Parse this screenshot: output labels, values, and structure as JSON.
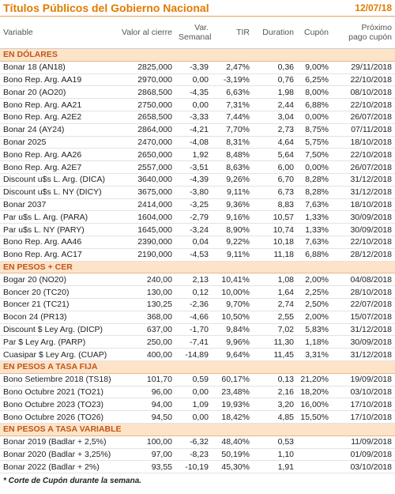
{
  "header": {
    "title": "Títulos Públicos del Gobierno Nacional",
    "date": "12/07/18"
  },
  "table": {
    "columns": [
      [
        "Variable"
      ],
      [
        "Valor al cierre"
      ],
      [
        "Var.",
        "Semanal"
      ],
      [
        "TIR"
      ],
      [
        "Duration"
      ],
      [
        "Cupón"
      ],
      [
        "Próximo",
        "pago cupón"
      ]
    ],
    "sections": [
      {
        "title": "EN DÓLARES",
        "rows": [
          [
            "Bonar 18 (AN18)",
            "2825,000",
            "-3,39",
            "2,47%",
            "0,36",
            "9,00%",
            "29/11/2018"
          ],
          [
            "Bono Rep. Arg. AA19",
            "2970,000",
            "0,00",
            "-3,19%",
            "0,76",
            "6,25%",
            "22/10/2018"
          ],
          [
            "Bonar 20 (AO20)",
            "2868,500",
            "-4,35",
            "6,63%",
            "1,98",
            "8,00%",
            "08/10/2018"
          ],
          [
            "Bono Rep. Arg. AA21",
            "2750,000",
            "0,00",
            "7,31%",
            "2,44",
            "6,88%",
            "22/10/2018"
          ],
          [
            "Bono Rep. Arg. A2E2",
            "2658,500",
            "-3,33",
            "7,44%",
            "3,04",
            "0,00%",
            "26/07/2018"
          ],
          [
            "Bonar 24 (AY24)",
            "2864,000",
            "-4,21",
            "7,70%",
            "2,73",
            "8,75%",
            "07/11/2018"
          ],
          [
            "Bonar 2025",
            "2470,000",
            "-4,08",
            "8,31%",
            "4,64",
            "5,75%",
            "18/10/2018"
          ],
          [
            "Bono Rep. Arg. AA26",
            "2650,000",
            "1,92",
            "8,48%",
            "5,64",
            "7,50%",
            "22/10/2018"
          ],
          [
            "Bono Rep. Arg. A2E7",
            "2557,000",
            "-3,51",
            "8,63%",
            "6,00",
            "0,00%",
            "26/07/2018"
          ],
          [
            "Discount u$s L. Arg. (DICA)",
            "3640,000",
            "-4,39",
            "9,26%",
            "6,70",
            "8,28%",
            "31/12/2018"
          ],
          [
            "Discount u$s L. NY (DICY)",
            "3675,000",
            "-3,80",
            "9,11%",
            "6,73",
            "8,28%",
            "31/12/2018"
          ],
          [
            "Bonar 2037",
            "2414,000",
            "-3,25",
            "9,36%",
            "8,83",
            "7,63%",
            "18/10/2018"
          ],
          [
            "Par u$s L. Arg. (PARA)",
            "1604,000",
            "-2,79",
            "9,16%",
            "10,57",
            "1,33%",
            "30/09/2018"
          ],
          [
            "Par u$s L. NY (PARY)",
            "1645,000",
            "-3,24",
            "8,90%",
            "10,74",
            "1,33%",
            "30/09/2018"
          ],
          [
            "Bono Rep. Arg. AA46",
            "2390,000",
            "0,04",
            "9,22%",
            "10,18",
            "7,63%",
            "22/10/2018"
          ],
          [
            "Bono Rep. Arg. AC17",
            "2190,000",
            "-4,53",
            "9,11%",
            "11,18",
            "6,88%",
            "28/12/2018"
          ]
        ]
      },
      {
        "title": "EN PESOS + CER",
        "rows": [
          [
            "Bogar 20 (NO20)",
            "240,00",
            "2,13",
            "10,41%",
            "1,08",
            "2,00%",
            "04/08/2018"
          ],
          [
            "Boncer 20 (TC20)",
            "130,00",
            "0,12",
            "10,00%",
            "1,64",
            "2,25%",
            "28/10/2018"
          ],
          [
            "Boncer 21 (TC21)",
            "130,25",
            "-2,36",
            "9,70%",
            "2,74",
            "2,50%",
            "22/07/2018"
          ],
          [
            "Bocon 24 (PR13)",
            "368,00",
            "-4,66",
            "10,50%",
            "2,55",
            "2,00%",
            "15/07/2018"
          ],
          [
            "Discount $ Ley Arg. (DICP)",
            "637,00",
            "-1,70",
            "9,84%",
            "7,02",
            "5,83%",
            "31/12/2018"
          ],
          [
            "Par $ Ley Arg. (PARP)",
            "250,00",
            "-7,41",
            "9,96%",
            "11,30",
            "1,18%",
            "30/09/2018"
          ],
          [
            "Cuasipar $ Ley Arg. (CUAP)",
            "400,00",
            "-14,89",
            "9,64%",
            "11,45",
            "3,31%",
            "31/12/2018"
          ]
        ]
      },
      {
        "title": "EN PESOS A TASA FIJA",
        "rows": [
          [
            "Bono Setiembre 2018 (TS18)",
            "101,70",
            "0,59",
            "60,17%",
            "0,13",
            "21,20%",
            "19/09/2018"
          ],
          [
            "Bono Octubre 2021 (TO21)",
            "96,00",
            "0,00",
            "23,48%",
            "2,16",
            "18,20%",
            "03/10/2018"
          ],
          [
            "Bono Octubre 2023 (TO23)",
            "94,00",
            "1,09",
            "19,93%",
            "3,20",
            "16,00%",
            "17/10/2018"
          ],
          [
            "Bono Octubre 2026 (TO26)",
            "94,50",
            "0,00",
            "18,42%",
            "4,85",
            "15,50%",
            "17/10/2018"
          ]
        ]
      },
      {
        "title": "EN PESOS A TASA VARIABLE",
        "rows": [
          [
            "Bonar 2019 (Badlar + 2,5%)",
            "100,00",
            "-6,32",
            "48,40%",
            "0,53",
            null,
            "11/09/2018"
          ],
          [
            "Bonar 2020 (Badlar + 3,25%)",
            "97,00",
            "-8,23",
            "50,19%",
            "1,10",
            null,
            "01/09/2018"
          ],
          [
            "Bonar 2022 (Badlar + 2%)",
            "93,55",
            "-10,19",
            "45,30%",
            "1,91",
            null,
            "03/10/2018"
          ]
        ]
      }
    ]
  },
  "footnote": "* Corte de Cupón durante la semana."
}
